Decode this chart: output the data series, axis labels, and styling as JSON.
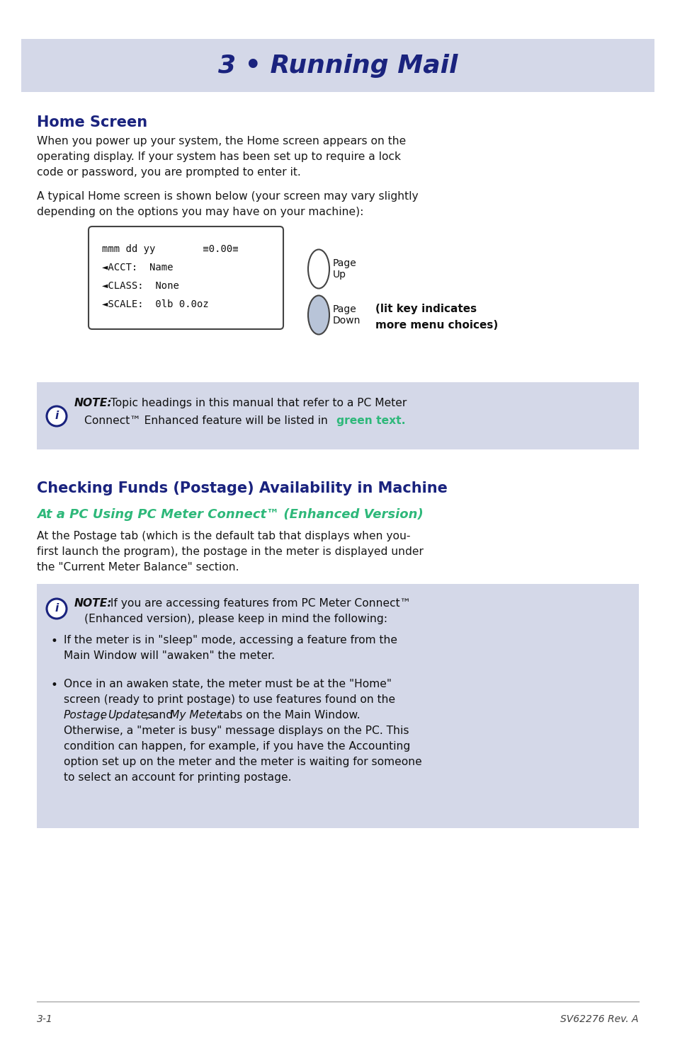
{
  "title": "3 • Running Mail",
  "title_bg": "#d4d8e8",
  "title_color": "#1a237e",
  "section1_heading": "Home Screen",
  "heading_color": "#1a237e",
  "para1_line1": "When you power up your system, the Home screen appears on the",
  "para1_line2": "operating display. If your system has been set up to require a lock",
  "para1_line3": "code or password, you are prompted to enter it.",
  "para2_line1": "A typical Home screen is shown below (your screen may vary slightly",
  "para2_line2": "depending on the options you may have on your machine):",
  "screen_lines": [
    "mmm dd yy        ≡0.00≡",
    "◄ACCT:  Name",
    "◄CLASS:  None",
    "◄SCALE:  0lb 0.0oz"
  ],
  "page_up_label": "Page\nUp",
  "page_down_label": "Page\nDown",
  "lit_key_note_line1": "(lit key indicates",
  "lit_key_note_line2": "more menu choices)",
  "note1_bold": "NOTE:",
  "note1_rest_line1": " Topic headings in this manual that refer to a PC Meter",
  "note1_rest_line2": "Connect™ Enhanced feature will be listed in ",
  "note1_green": "green text.",
  "note1_bg": "#d4d8e8",
  "section2_heading": "Checking Funds (Postage) Availability in Machine",
  "subsection_heading": "At a PC Using PC Meter Connect™ (Enhanced Version)",
  "subsection_color": "#2eb87a",
  "para3_line1": "At the Postage tab (which is the default tab that displays when you-",
  "para3_line2": "first launch the program), the postage in the meter is displayed under",
  "para3_line3": "the \"Current Meter Balance\" section.",
  "note2_bold": "NOTE:",
  "note2_rest_line1": " If you are accessing features from PC Meter Connect™",
  "note2_rest_line2": "(Enhanced version), please keep in mind the following:",
  "note2_bg": "#d4d8e8",
  "bullet1_line1": "If the meter is in \"sleep\" mode, accessing a feature from the",
  "bullet1_line2": "Main Window will \"awaken\" the meter.",
  "bullet2_lines": [
    "Once in an awaken state, the meter must be at the \"Home\"",
    "screen (ready to print postage) to use features found on the",
    "Postage, Updates, and My Meter tabs on the Main Window.",
    "Otherwise, a \"meter is busy\" message displays on the PC. This",
    "condition can happen, for example, if you have the Accounting",
    "option set up on the meter and the meter is waiting for someone",
    "to select an account for printing postage."
  ],
  "footer_left": "3-1",
  "footer_right": "SV62276 Rev. A",
  "body_color": "#1a1a1a",
  "bg_color": "#ffffff",
  "icon_circle_color": "#1a237e",
  "green_text_color": "#2eb87a"
}
